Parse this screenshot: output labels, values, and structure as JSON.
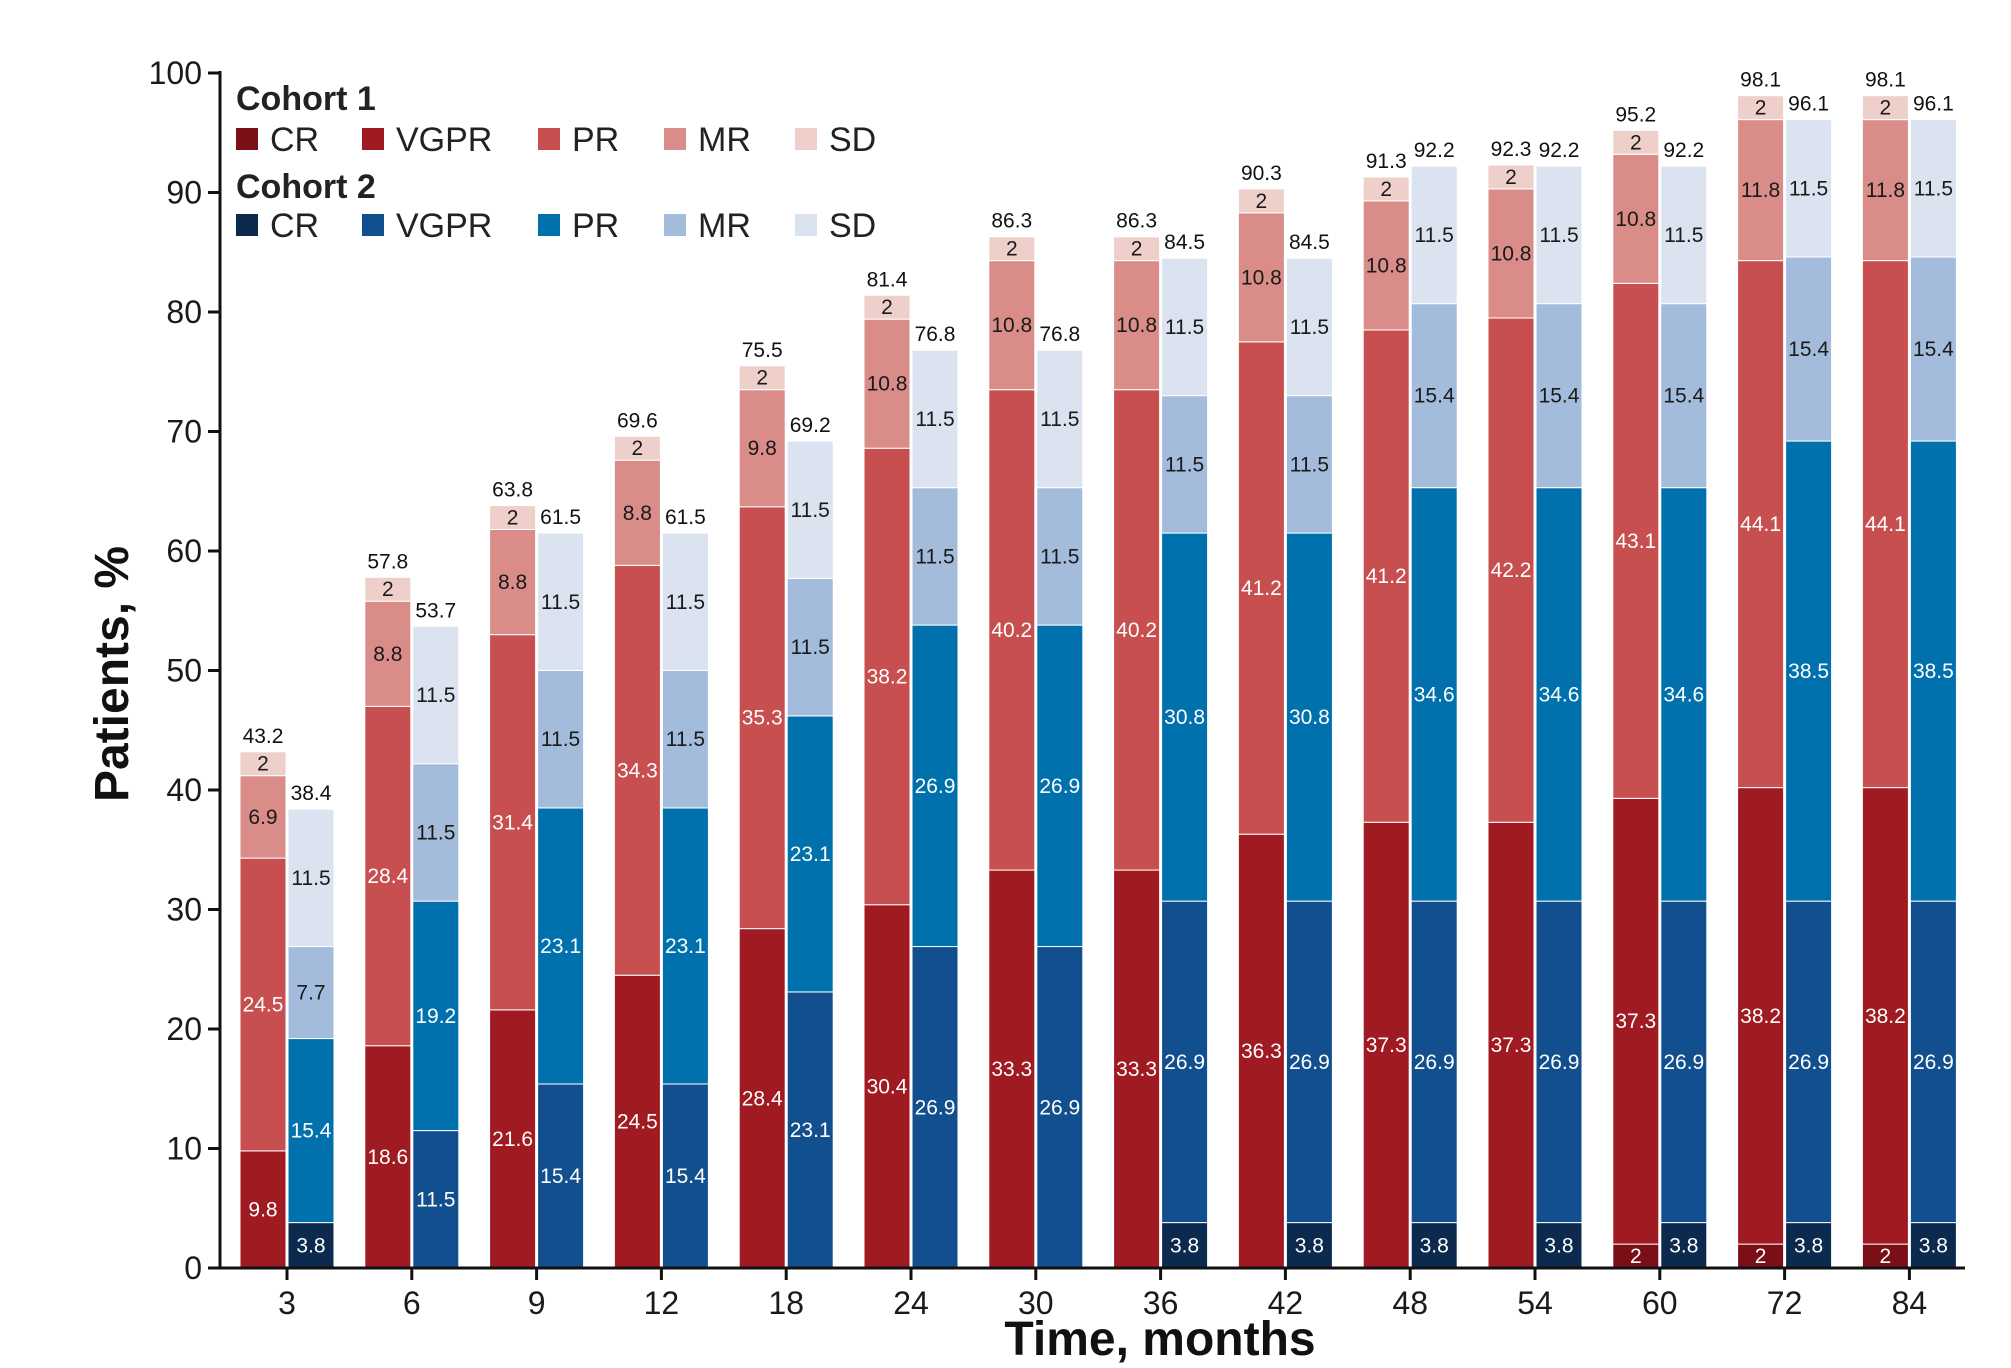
{
  "chart_data": {
    "type": "bar",
    "stacked": true,
    "grouped": true,
    "xlabel": "Time, months",
    "ylabel": "Patients, %",
    "ylim": [
      0,
      100
    ],
    "yticks": [
      0,
      10,
      20,
      30,
      40,
      50,
      60,
      70,
      80,
      90,
      100
    ],
    "categories": [
      "3",
      "6",
      "9",
      "12",
      "18",
      "24",
      "30",
      "36",
      "42",
      "48",
      "54",
      "60",
      "72",
      "84"
    ],
    "grid": false,
    "legend_position": "top-left",
    "cohorts": [
      {
        "name": "Cohort 1",
        "totals": [
          "43.2",
          "57.8",
          "63.8",
          "69.6",
          "75.5",
          "81.4",
          "86.3",
          "86.3",
          "90.3",
          "91.3",
          "92.3",
          "95.2",
          "98.1",
          "98.1"
        ],
        "series": [
          {
            "name": "CR",
            "color": "#7a0f18",
            "label_color": "#ffffff",
            "values": [
              0,
              0,
              0,
              0,
              0,
              0,
              0,
              0,
              0,
              0,
              0,
              2,
              2,
              2
            ]
          },
          {
            "name": "VGPR",
            "color": "#a01a22",
            "label_color": "#ffffff",
            "values": [
              9.8,
              18.6,
              21.6,
              24.5,
              28.4,
              30.4,
              33.3,
              33.3,
              36.3,
              37.3,
              37.3,
              37.3,
              38.2,
              38.2
            ]
          },
          {
            "name": "PR",
            "color": "#c84f4f",
            "label_color": "#ffffff",
            "values": [
              24.5,
              28.4,
              31.4,
              34.3,
              35.3,
              38.2,
              40.2,
              40.2,
              41.2,
              41.2,
              42.2,
              43.1,
              44.1,
              44.1
            ]
          },
          {
            "name": "MR",
            "color": "#d98c88",
            "label_color": "#1a1a1a",
            "values": [
              6.9,
              8.8,
              8.8,
              8.8,
              9.8,
              10.8,
              10.8,
              10.8,
              10.8,
              10.8,
              10.8,
              10.8,
              11.8,
              11.8
            ]
          },
          {
            "name": "SD",
            "color": "#efcfca",
            "label_color": "#1a1a1a",
            "values": [
              2,
              2,
              2,
              2,
              2,
              2,
              2,
              2,
              2,
              2,
              2,
              2,
              2,
              2
            ]
          }
        ]
      },
      {
        "name": "Cohort 2",
        "totals": [
          "38.4",
          "53.7",
          "61.5",
          "61.5",
          "69.2",
          "76.8",
          "76.8",
          "84.5",
          "84.5",
          "92.2",
          "92.2",
          "92.2",
          "96.1",
          "96.1"
        ],
        "series": [
          {
            "name": "CR",
            "color": "#0b2a4e",
            "label_color": "#ffffff",
            "values": [
              3.8,
              0,
              0,
              0,
              0,
              0,
              0,
              3.8,
              3.8,
              3.8,
              3.8,
              3.8,
              3.8,
              3.8
            ]
          },
          {
            "name": "VGPR",
            "color": "#124f8e",
            "label_color": "#ffffff",
            "values": [
              0,
              11.5,
              15.4,
              15.4,
              23.1,
              26.9,
              26.9,
              26.9,
              26.9,
              26.9,
              26.9,
              26.9,
              26.9,
              26.9
            ]
          },
          {
            "name": "PR",
            "color": "#0071ad",
            "label_color": "#ffffff",
            "values": [
              15.4,
              19.2,
              23.1,
              23.1,
              23.1,
              26.9,
              26.9,
              30.8,
              30.8,
              34.6,
              34.6,
              34.6,
              38.5,
              38.5
            ]
          },
          {
            "name": "MR",
            "color": "#a4bcdc",
            "label_color": "#1a1a1a",
            "values": [
              7.7,
              11.5,
              11.5,
              11.5,
              11.5,
              11.5,
              11.5,
              11.5,
              11.5,
              15.4,
              15.4,
              15.4,
              15.4,
              15.4
            ]
          },
          {
            "name": "SD",
            "color": "#dbe2f0",
            "label_color": "#1a1a1a",
            "values": [
              11.5,
              11.5,
              11.5,
              11.5,
              11.5,
              11.5,
              11.5,
              11.5,
              11.5,
              11.5,
              11.5,
              11.5,
              11.5,
              11.5
            ]
          }
        ]
      }
    ]
  }
}
